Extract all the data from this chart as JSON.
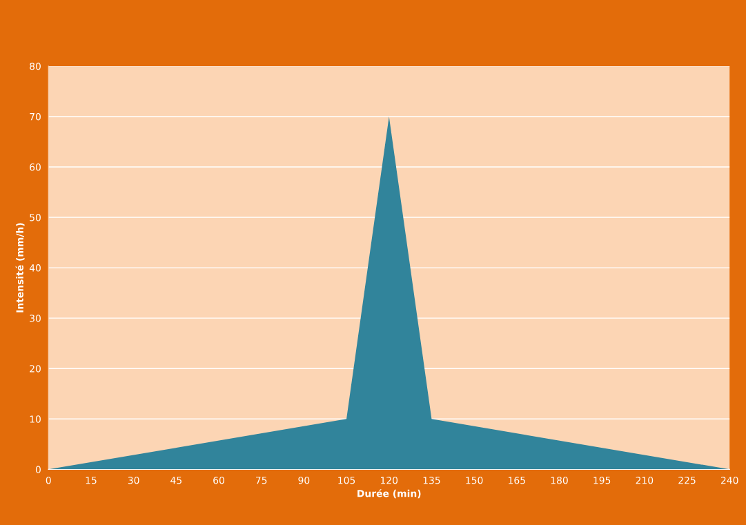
{
  "chart_data": {
    "type": "area",
    "xlabel": "Durée (min)",
    "ylabel": "Intensité (mm/h)",
    "x": [
      0,
      105,
      120,
      135,
      240
    ],
    "series": [
      {
        "color": "#31849b",
        "values": [
          0,
          10,
          70,
          10,
          0
        ]
      }
    ],
    "xlim": [
      0,
      240
    ],
    "xticks": [
      0,
      15,
      30,
      45,
      60,
      75,
      90,
      105,
      120,
      135,
      150,
      165,
      180,
      195,
      210,
      225,
      240
    ],
    "ylim": [
      0,
      80
    ],
    "yticks": [
      0,
      10,
      20,
      30,
      40,
      50,
      60,
      70,
      80
    ],
    "grid": "y"
  }
}
